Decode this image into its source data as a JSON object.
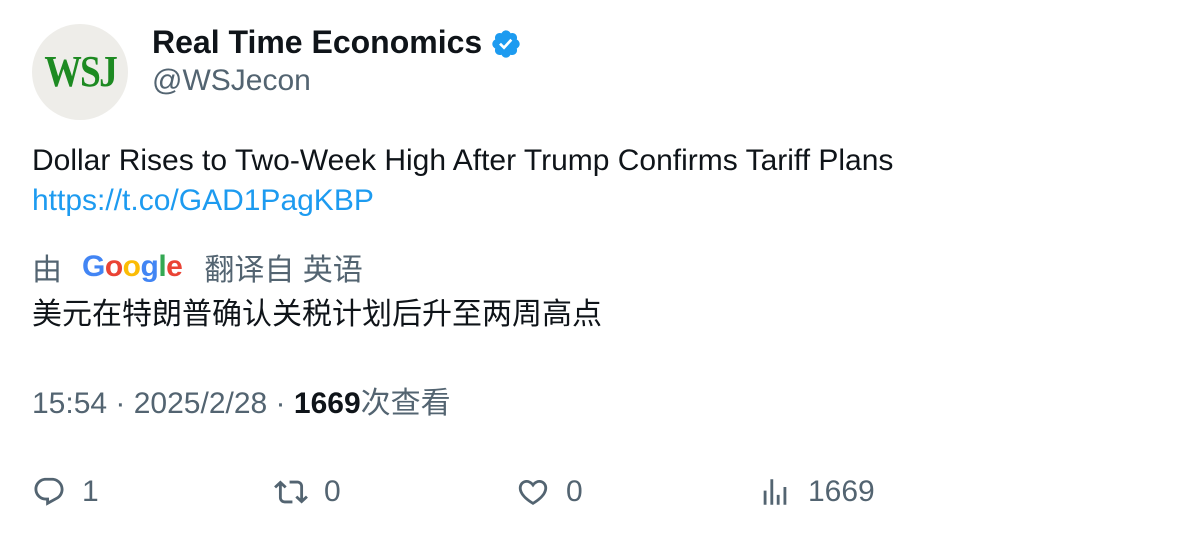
{
  "author": {
    "avatar_text": "WSJ",
    "display_name": "Real Time Economics",
    "handle": "@WSJecon"
  },
  "tweet": {
    "text": "Dollar Rises to Two-Week High After Trump Confirms Tariff Plans",
    "link": "https://t.co/GAD1PagKBP"
  },
  "translation": {
    "prefix": "由",
    "provider_letters": [
      "G",
      "o",
      "o",
      "g",
      "l",
      "e"
    ],
    "provider_colors": [
      "#4285f4",
      "#ea4335",
      "#fbbc05",
      "#4285f4",
      "#34a853",
      "#ea4335"
    ],
    "suffix": "翻译自 英语",
    "text": "美元在特朗普确认关税计划后升至两周高点"
  },
  "meta": {
    "time": "15:54",
    "separator": " · ",
    "date": "2025/2/28",
    "views": "1669",
    "views_label": "次查看"
  },
  "actions": {
    "reply": {
      "icon": "reply-icon",
      "count": "1"
    },
    "retweet": {
      "icon": "retweet-icon",
      "count": "0"
    },
    "like": {
      "icon": "heart-icon",
      "count": "0"
    },
    "views": {
      "icon": "views-chart-icon",
      "count": "1669"
    }
  },
  "colors": {
    "text_primary": "#0f1419",
    "text_secondary": "#536471",
    "link": "#1d9bf0",
    "verified": "#1d9bf0",
    "avatar_bg": "#eeede9",
    "avatar_text": "#1d8a22"
  }
}
